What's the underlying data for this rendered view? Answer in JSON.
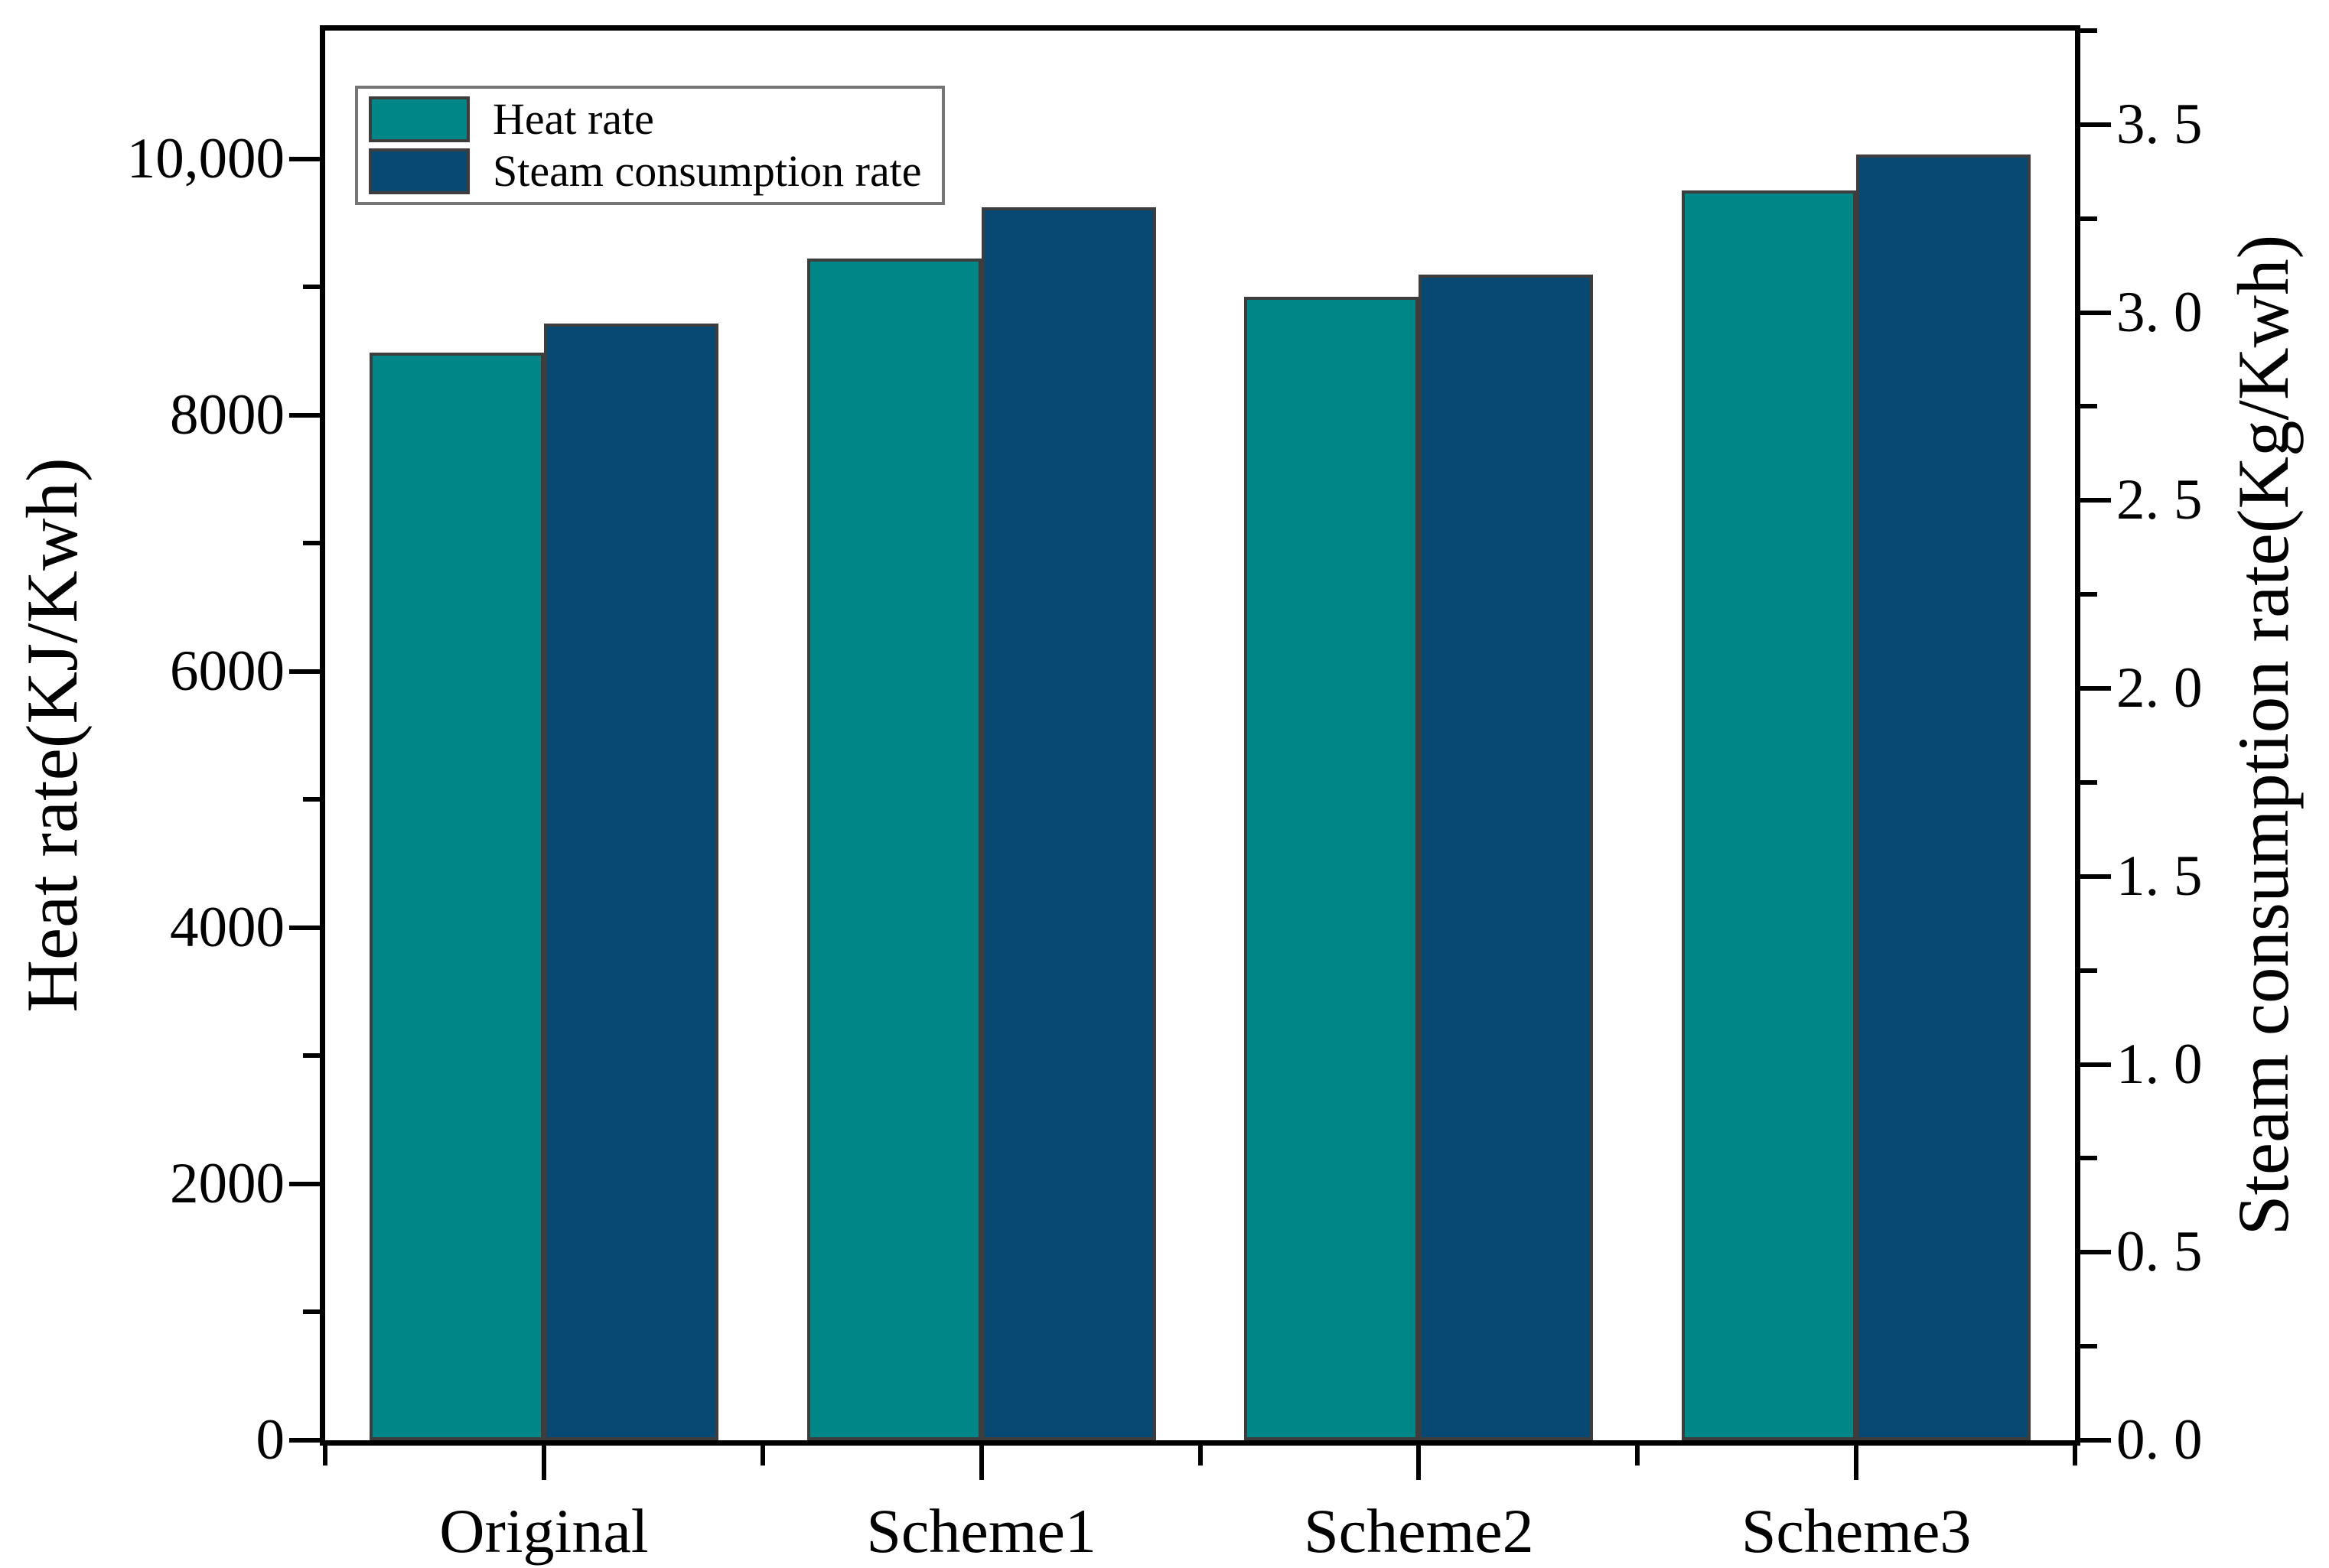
{
  "chart_data": {
    "type": "bar",
    "categories": [
      "Original",
      "Scheme1",
      "Scheme2",
      "Scheme3"
    ],
    "series": [
      {
        "name": "Heat rate",
        "axis": "left",
        "color": "#008686",
        "values": [
          8490,
          9220,
          8920,
          9750
        ]
      },
      {
        "name": "Steam consumption rate",
        "axis": "right",
        "color": "#084973",
        "values": [
          2.97,
          3.28,
          3.1,
          3.42
        ]
      }
    ],
    "left_axis": {
      "label": "Heat rate(KJ/Kwh)",
      "min": 0,
      "max": 11000,
      "major_ticks": [
        {
          "value": 0,
          "label": "0"
        },
        {
          "value": 2000,
          "label": "2000"
        },
        {
          "value": 4000,
          "label": "4000"
        },
        {
          "value": 6000,
          "label": "6000"
        },
        {
          "value": 8000,
          "label": "8000"
        },
        {
          "value": 10000,
          "label": "10,000"
        }
      ],
      "minor_ticks": [
        1000,
        3000,
        5000,
        7000,
        9000
      ]
    },
    "right_axis": {
      "label": "Steam consumption rate(Kg/Kwh)",
      "min": 0,
      "max": 3.75,
      "major_ticks": [
        {
          "value": 0.0,
          "label": "0. 0"
        },
        {
          "value": 0.5,
          "label": "0. 5"
        },
        {
          "value": 1.0,
          "label": "1. 0"
        },
        {
          "value": 1.5,
          "label": "1. 5"
        },
        {
          "value": 2.0,
          "label": "2. 0"
        },
        {
          "value": 2.5,
          "label": "2. 5"
        },
        {
          "value": 3.0,
          "label": "3. 0"
        },
        {
          "value": 3.5,
          "label": "3. 5"
        }
      ],
      "minor_ticks": [
        0.25,
        0.75,
        1.25,
        1.75,
        2.25,
        2.75,
        3.25,
        3.75
      ]
    },
    "legend": {
      "position": "top-left"
    },
    "grid": false,
    "colors": {
      "bar_edge": "#3d3d3d",
      "axis": "#000000",
      "background": "#ffffff"
    }
  }
}
